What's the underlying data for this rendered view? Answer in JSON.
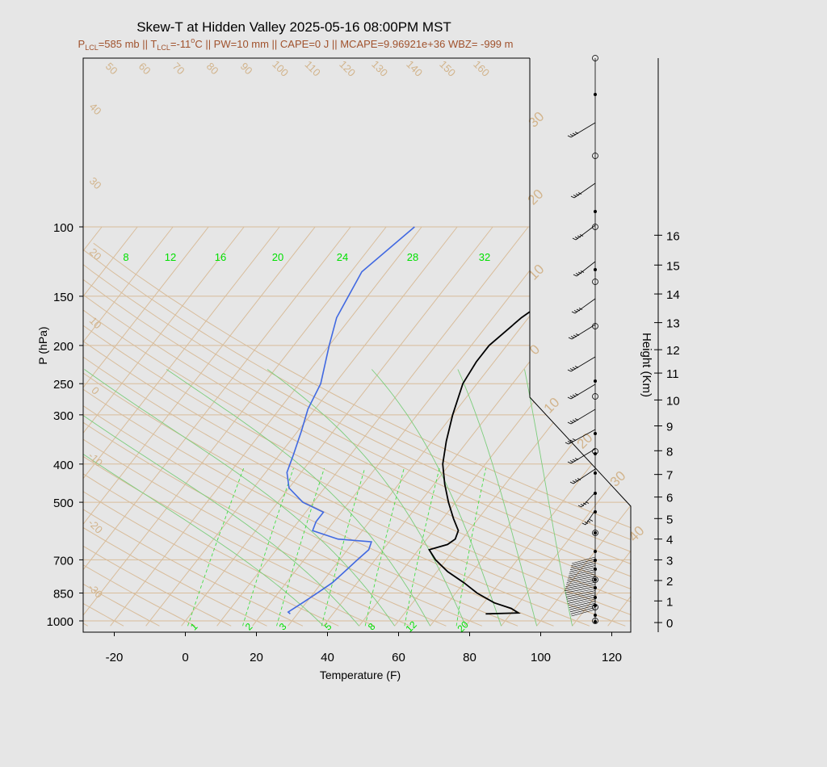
{
  "chart_data": {
    "type": "line",
    "title": "Skew-T at Hidden Valley 2025-05-16 08:00PM MST",
    "subtitle": {
      "p_sym": "P",
      "p_sub": "LCL",
      "p_val": "=585 mb || ",
      "t_sym": "T",
      "t_sub": "LCL",
      "t_val": "=-11",
      "deg": "o",
      "rest": "C || PW=10 mm || CAPE=0 J || MCAPE=9.96921e+36 WBZ= -999 m"
    },
    "xlabel": "Temperature (F)",
    "ylabel": "P (hPa)",
    "y2label": "Height (Km)",
    "xlim": [
      -28,
      125
    ],
    "ylim": [
      1030,
      100
    ],
    "y_scale": "log",
    "x_ticks": [
      "-20",
      "0",
      "20",
      "40",
      "60",
      "80",
      "100",
      "120"
    ],
    "x_tick_values": [
      -20,
      0,
      20,
      40,
      60,
      80,
      100,
      120
    ],
    "p_ticks": [
      "100",
      "150",
      "200",
      "250",
      "300",
      "400",
      "500",
      "700",
      "850",
      "1000"
    ],
    "p_tick_values": [
      100,
      150,
      200,
      250,
      300,
      400,
      500,
      700,
      850,
      1000
    ],
    "height_ticks": [
      "0",
      "1",
      "2",
      "3",
      "4",
      "5",
      "6",
      "7",
      "8",
      "9",
      "10",
      "11",
      "12",
      "13",
      "14",
      "15",
      "16"
    ],
    "height_tick_pressures": [
      1010,
      890,
      790,
      700,
      620,
      550,
      485,
      425,
      370,
      320,
      275,
      235,
      205,
      175,
      148,
      125,
      105
    ],
    "isotherm_labels_left": [
      "40",
      "30",
      "20",
      "10",
      "0",
      "-10",
      "-20",
      "-30"
    ],
    "isotherm_labels_top": [
      "50",
      "60",
      "70",
      "80",
      "90",
      "100",
      "110",
      "120",
      "130",
      "140",
      "150",
      "160"
    ],
    "isotherm_labels_right": [
      "30",
      "20",
      "10",
      "0",
      "10",
      "20",
      "30",
      "40"
    ],
    "mixing_ratio_top": [
      "8",
      "12",
      "16",
      "20",
      "24",
      "28",
      "32"
    ],
    "mixing_ratio_bottom": [
      "1",
      "2",
      "3",
      "5",
      "8",
      "12",
      "20"
    ],
    "series": [
      {
        "color": "#000000",
        "p": [
          960,
          955,
          930,
          900,
          850,
          800,
          750,
          700,
          660,
          640,
          620,
          590,
          550,
          500,
          450,
          400,
          350,
          300,
          250,
          220,
          200,
          170,
          140,
          120,
          100
        ],
        "values": [
          83,
          92,
          89,
          83,
          76,
          70,
          63,
          57,
          53,
          57,
          58,
          57,
          53,
          48,
          43,
          38,
          34,
          30,
          26,
          25,
          25,
          28,
          34,
          42,
          56
        ]
      },
      {
        "color": "#4169e1",
        "p": [
          960,
          950,
          900,
          850,
          800,
          750,
          700,
          660,
          630,
          620,
          590,
          560,
          530,
          500,
          460,
          420,
          380,
          330,
          290,
          250,
          200,
          170,
          130,
          100
        ],
        "values": [
          28,
          27,
          29,
          31,
          33,
          34,
          35,
          36,
          35,
          25,
          16,
          15,
          15,
          7,
          0,
          -4,
          -6,
          -9,
          -12,
          -14,
          -20,
          -24,
          -27,
          -22
        ]
      }
    ]
  }
}
